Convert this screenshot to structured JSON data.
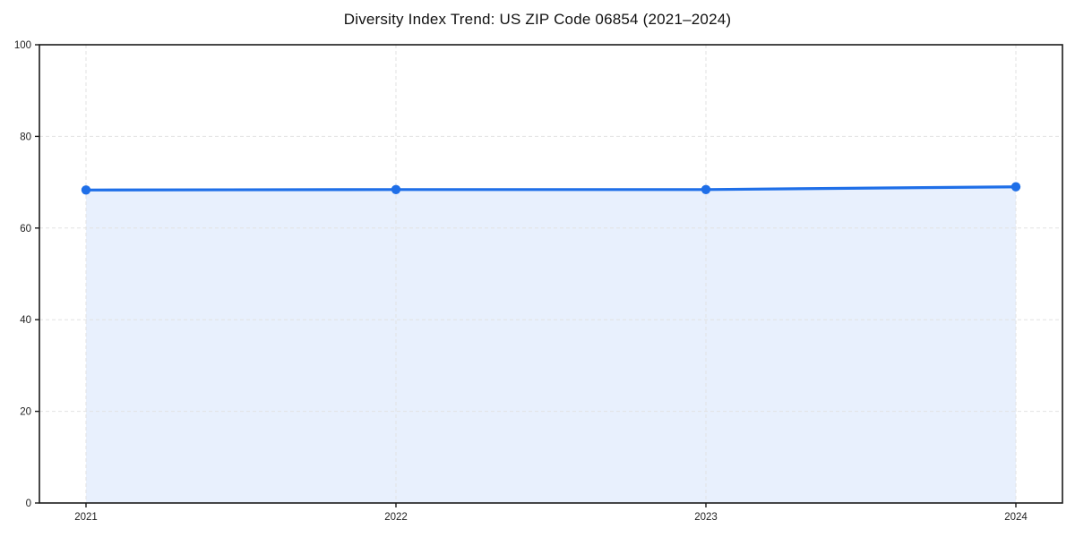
{
  "chart_data": {
    "type": "line",
    "title": "Diversity Index Trend: US ZIP Code 06854 (2021–2024)",
    "categories": [
      "2021",
      "2022",
      "2023",
      "2024"
    ],
    "series": [
      {
        "name": "Diversity Index",
        "values": [
          68.3,
          68.4,
          68.4,
          69.0
        ]
      }
    ],
    "xlabel": "",
    "ylabel": "",
    "ylim": [
      0,
      100
    ],
    "yticks": [
      0,
      20,
      40,
      60,
      80,
      100
    ],
    "grid": true,
    "grid_style": "dashed",
    "area_fill": true,
    "legend": false,
    "colors": {
      "line": "#1f6fe8",
      "marker": "#1f6fe8",
      "fill": "rgba(31, 111, 232, 0.10)",
      "grid": "#e2e2e2",
      "spine": "#1a1a1a",
      "tick_label": "#222222",
      "background": "#ffffff"
    }
  }
}
